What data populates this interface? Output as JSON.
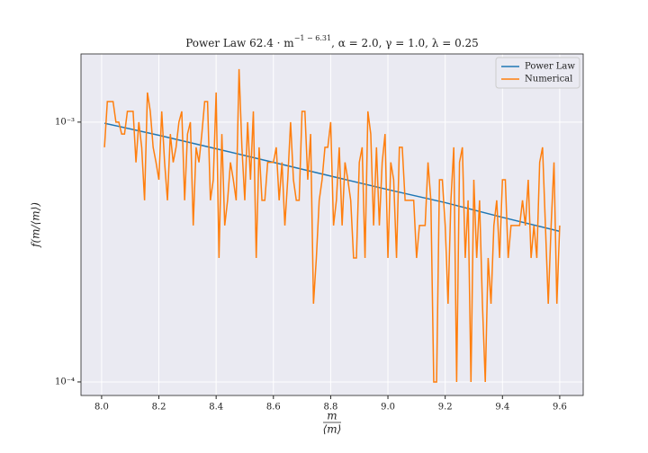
{
  "chart_data": {
    "type": "line",
    "title": "Power Law  62.4 · m",
    "title_exponent": "−1 − 6.31",
    "title_rest": ", α = 2.0, γ = 1.0, λ = 0.25",
    "xlabel": {
      "numerator": "m",
      "denominator": "⟨m⟩"
    },
    "ylabel": "f(m/⟨m⟩)",
    "log_y": true,
    "grid": true,
    "legend": "upper right",
    "xlim": [
      7.928,
      9.682
    ],
    "ylim": [
      8.87e-05,
      0.00183
    ],
    "xticks": [
      {
        "value": 8,
        "label": "8.0"
      },
      8.2,
      8.4,
      8.6,
      8.8,
      {
        "value": 9,
        "label": "9.0"
      },
      9.2,
      9.4,
      9.6
    ],
    "yticks": [
      {
        "value": 0.0001,
        "label": "10⁻⁴"
      },
      {
        "value": 0.001,
        "label": "10⁻³"
      }
    ],
    "series": [
      {
        "name": "Power Law",
        "color": "#1f77b4",
        "x": [
          8.01,
          8.2,
          8.4,
          8.6,
          8.8,
          9.0,
          9.2,
          9.4,
          9.6
        ],
        "values": [
          0.00099,
          0.00089,
          0.00079,
          0.0007,
          0.00062,
          0.00055,
          0.00049,
          0.00043,
          0.00038
        ]
      },
      {
        "name": "Numerical",
        "color": "#ff7f0e",
        "x": [
          8.01,
          8.02,
          8.03,
          8.04,
          8.05,
          8.06,
          8.07,
          8.08,
          8.09,
          8.1,
          8.11,
          8.12,
          8.13,
          8.14,
          8.15,
          8.16,
          8.17,
          8.18,
          8.19,
          8.2,
          8.21,
          8.22,
          8.23,
          8.24,
          8.25,
          8.26,
          8.27,
          8.28,
          8.29,
          8.3,
          8.31,
          8.32,
          8.33,
          8.34,
          8.35,
          8.36,
          8.37,
          8.38,
          8.39,
          8.4,
          8.41,
          8.42,
          8.43,
          8.44,
          8.45,
          8.46,
          8.47,
          8.48,
          8.49,
          8.5,
          8.51,
          8.52,
          8.53,
          8.54,
          8.55,
          8.56,
          8.57,
          8.58,
          8.59,
          8.6,
          8.61,
          8.62,
          8.63,
          8.64,
          8.65,
          8.66,
          8.67,
          8.68,
          8.69,
          8.7,
          8.71,
          8.72,
          8.73,
          8.74,
          8.75,
          8.76,
          8.77,
          8.78,
          8.79,
          8.8,
          8.81,
          8.82,
          8.83,
          8.84,
          8.85,
          8.86,
          8.87,
          8.88,
          8.89,
          8.9,
          8.91,
          8.92,
          8.93,
          8.94,
          8.95,
          8.96,
          8.97,
          8.98,
          8.99,
          9.0,
          9.01,
          9.02,
          9.03,
          9.04,
          9.05,
          9.06,
          9.07,
          9.08,
          9.09,
          9.1,
          9.11,
          9.12,
          9.13,
          9.14,
          9.15,
          9.16,
          9.17,
          9.18,
          9.19,
          9.2,
          9.21,
          9.22,
          9.23,
          9.24,
          9.25,
          9.26,
          9.27,
          9.28,
          9.29,
          9.3,
          9.31,
          9.32,
          9.33,
          9.34,
          9.35,
          9.36,
          9.37,
          9.38,
          9.39,
          9.4,
          9.41,
          9.42,
          9.43,
          9.44,
          9.45,
          9.46,
          9.47,
          9.48,
          9.49,
          9.5,
          9.51,
          9.52,
          9.53,
          9.54,
          9.55,
          9.56,
          9.57,
          9.58,
          9.59,
          9.6
        ],
        "values": [
          0.0008,
          0.0012,
          0.0012,
          0.0012,
          0.001,
          0.001,
          0.0009,
          0.0009,
          0.0011,
          0.0011,
          0.0011,
          0.0007,
          0.001,
          0.0008,
          0.0005,
          0.0013,
          0.0011,
          0.0008,
          0.0007,
          0.0006,
          0.0011,
          0.0007,
          0.0005,
          0.0009,
          0.0007,
          0.0008,
          0.001,
          0.0011,
          0.0005,
          0.0009,
          0.001,
          0.0004,
          0.0008,
          0.0007,
          0.0009,
          0.0012,
          0.0012,
          0.0005,
          0.0006,
          0.0013,
          0.0003,
          0.0009,
          0.0004,
          0.0005,
          0.0007,
          0.0006,
          0.0005,
          0.0016,
          0.0008,
          0.0005,
          0.001,
          0.0006,
          0.0011,
          0.0003,
          0.0008,
          0.0005,
          0.0005,
          0.0007,
          0.0007,
          0.0007,
          0.0008,
          0.0005,
          0.0007,
          0.0004,
          0.0006,
          0.001,
          0.0006,
          0.0005,
          0.0005,
          0.0011,
          0.0011,
          0.0006,
          0.0009,
          0.0002,
          0.0003,
          0.0005,
          0.0006,
          0.0008,
          0.0008,
          0.001,
          0.0004,
          0.0005,
          0.0008,
          0.0004,
          0.0007,
          0.0006,
          0.0005,
          0.0003,
          0.0003,
          0.0007,
          0.0008,
          0.0003,
          0.0011,
          0.0009,
          0.0004,
          0.0008,
          0.0004,
          0.0007,
          0.0009,
          0.0003,
          0.0007,
          0.0006,
          0.0003,
          0.0008,
          0.0008,
          0.0005,
          0.0005,
          0.0005,
          0.0005,
          0.0003,
          0.0004,
          0.0004,
          0.0004,
          0.0007,
          0.0005,
          0.0001,
          0.0001,
          0.0006,
          0.0006,
          0.0004,
          0.0002,
          0.0005,
          0.0008,
          0.0001,
          0.0007,
          0.0008,
          0.0003,
          0.0005,
          0.0001,
          0.0006,
          0.0003,
          0.0005,
          0.0002,
          0.0001,
          0.0003,
          0.0002,
          0.0004,
          0.0005,
          0.0003,
          0.0006,
          0.0006,
          0.0003,
          0.0004,
          0.0004,
          0.0004,
          0.0004,
          0.0005,
          0.0004,
          0.0006,
          0.0003,
          0.0004,
          0.0003,
          0.0007,
          0.0008,
          0.0004,
          0.0002,
          0.0004,
          0.0007,
          0.0002,
          0.0004
        ]
      }
    ]
  }
}
